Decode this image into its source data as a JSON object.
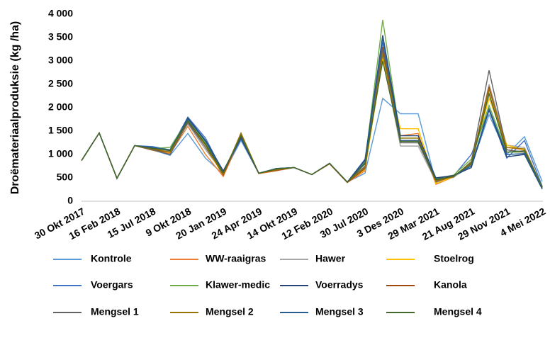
{
  "chart_data": {
    "type": "line",
    "y_label": "Droëmateriaalproduksie (kg /ha)",
    "categories": [
      "30 Okt 2017",
      null,
      "16 Feb 2018",
      null,
      "15 Jul 2018",
      null,
      "9 Okt 2018",
      null,
      "20 Jan 2019",
      null,
      "24 Apr 2019",
      null,
      "14 Okt 2019",
      null,
      "12 Feb 2020",
      null,
      "30 Jul 2020",
      null,
      "3 Des 2020",
      null,
      "29 Mar 2021",
      null,
      "21 Aug 2021",
      null,
      "29 Nov 2021",
      null,
      "4 Mei 2022"
    ],
    "ylim": [
      0,
      4000
    ],
    "yticks": [
      0,
      500,
      {
        "value": 1000,
        "label": "1 000"
      },
      {
        "value": 1500,
        "label": "1 500"
      },
      {
        "value": 2000,
        "label": "2 000"
      },
      {
        "value": 2500,
        "label": "2 500"
      },
      {
        "value": 3000,
        "label": "3 000"
      },
      {
        "value": 3500,
        "label": "3 500"
      },
      {
        "value": 4000,
        "label": "4 000"
      }
    ],
    "grid": false,
    "series": [
      {
        "name": "Kontrole",
        "color": "#5b9bd5",
        "values": [
          870,
          1460,
          490,
          1190,
          1100,
          980,
          1450,
          920,
          580,
          1300,
          600,
          680,
          720,
          570,
          810,
          410,
          600,
          2200,
          1870,
          1870,
          400,
          520,
          750,
          1850,
          1000,
          1380,
          420
        ]
      },
      {
        "name": "WW-raaigras",
        "color": "#ed7d31",
        "values": [
          870,
          1460,
          490,
          1190,
          1090,
          1020,
          1600,
          1000,
          530,
          1380,
          590,
          650,
          720,
          570,
          800,
          400,
          650,
          3200,
          1400,
          1450,
          360,
          520,
          780,
          2300,
          1150,
          1100,
          280
        ]
      },
      {
        "name": "Hawer",
        "color": "#a5a5a5",
        "values": [
          870,
          1460,
          490,
          1190,
          1120,
          1060,
          1650,
          1100,
          600,
          1420,
          600,
          660,
          720,
          570,
          810,
          410,
          700,
          3100,
          1180,
          1180,
          420,
          510,
          800,
          2500,
          1200,
          1150,
          300
        ]
      },
      {
        "name": "Stoelrog",
        "color": "#ffc000",
        "values": [
          870,
          1460,
          490,
          1190,
          1110,
          1040,
          1700,
          1150,
          560,
          1450,
          600,
          670,
          720,
          570,
          800,
          410,
          680,
          3050,
          1550,
          1550,
          380,
          520,
          820,
          2200,
          1200,
          1100,
          280
        ]
      },
      {
        "name": "Voergars",
        "color": "#4472c4",
        "values": [
          870,
          1460,
          490,
          1190,
          1170,
          1100,
          1800,
          1350,
          620,
          1330,
          600,
          700,
          720,
          570,
          810,
          410,
          900,
          3400,
          1300,
          1300,
          450,
          540,
          1000,
          1950,
          920,
          1300,
          320
        ]
      },
      {
        "name": "Klawer-medic",
        "color": "#70ad47",
        "values": [
          870,
          1460,
          490,
          1190,
          1130,
          1150,
          1750,
          1250,
          640,
          1400,
          600,
          690,
          720,
          570,
          810,
          410,
          850,
          3880,
          1350,
          1350,
          480,
          560,
          900,
          2050,
          1050,
          1050,
          300
        ]
      },
      {
        "name": "Voerradys",
        "color": "#264478",
        "values": [
          870,
          1460,
          490,
          1190,
          1150,
          1080,
          1780,
          1300,
          650,
          1350,
          600,
          700,
          720,
          570,
          810,
          410,
          880,
          3550,
          1400,
          1400,
          500,
          550,
          720,
          1950,
          950,
          1000,
          260
        ]
      },
      {
        "name": "Kanola",
        "color": "#9e480e",
        "values": [
          870,
          1460,
          490,
          1190,
          1100,
          1050,
          1700,
          1200,
          560,
          1420,
          600,
          660,
          720,
          570,
          800,
          400,
          700,
          3300,
          1300,
          1300,
          420,
          530,
          820,
          2450,
          1100,
          1050,
          290
        ]
      },
      {
        "name": "Mengsel 1",
        "color": "#636363",
        "values": [
          870,
          1460,
          490,
          1190,
          1100,
          1000,
          1680,
          1150,
          600,
          1440,
          600,
          680,
          720,
          570,
          810,
          410,
          750,
          3250,
          1250,
          1250,
          450,
          520,
          850,
          2800,
          1100,
          1050,
          300
        ]
      },
      {
        "name": "Mengsel 2",
        "color": "#997300",
        "values": [
          870,
          1460,
          490,
          1190,
          1120,
          1050,
          1720,
          1200,
          580,
          1460,
          600,
          670,
          720,
          570,
          810,
          410,
          720,
          3150,
          1350,
          1350,
          430,
          530,
          830,
          2400,
          1150,
          1120,
          300
        ]
      },
      {
        "name": "Mengsel 3",
        "color": "#255e91",
        "values": [
          870,
          1460,
          490,
          1190,
          1150,
          1100,
          1760,
          1280,
          620,
          1380,
          600,
          700,
          720,
          570,
          810,
          410,
          820,
          3500,
          1300,
          1300,
          470,
          540,
          760,
          1980,
          1000,
          1020,
          270
        ]
      },
      {
        "name": "Mengsel 4",
        "color": "#43682b",
        "values": [
          870,
          1460,
          490,
          1190,
          1130,
          1090,
          1720,
          1220,
          610,
          1400,
          600,
          690,
          720,
          570,
          810,
          410,
          800,
          3000,
          1280,
          1280,
          460,
          540,
          800,
          2300,
          1050,
          1080,
          300
        ]
      }
    ]
  }
}
